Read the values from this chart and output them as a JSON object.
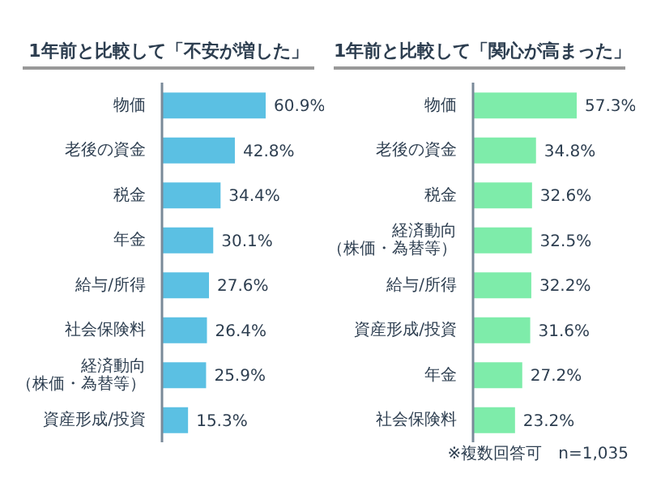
{
  "chart_data": [
    {
      "type": "bar",
      "orientation": "horizontal",
      "title": "1年前と比較して「不安が増した」",
      "tick_labels": "y",
      "legend": false,
      "grid": false,
      "categories": [
        "物価",
        "老後の資金",
        "税金",
        "年金",
        "給与/所得",
        "社会保険料",
        "経済動向（株価・為替等）",
        "資産形成/投資"
      ],
      "values": [
        60.9,
        42.8,
        34.4,
        30.1,
        27.6,
        26.4,
        25.9,
        15.3
      ],
      "color": "#5bc0e3",
      "value_labels": [
        "60.9%",
        "42.8%",
        "34.4%",
        "30.1%",
        "27.6%",
        "26.4%",
        "25.9%",
        "15.3%"
      ]
    },
    {
      "type": "bar",
      "orientation": "horizontal",
      "title": "1年前と比較して「関心が高まった」",
      "tick_labels": "y",
      "legend": false,
      "grid": false,
      "categories": [
        "物価",
        "老後の資金",
        "税金",
        "経済動向（株価・為替等）",
        "給与/所得",
        "資産形成/投資",
        "年金",
        "社会保険料"
      ],
      "values": [
        57.3,
        34.8,
        32.6,
        32.5,
        32.2,
        31.6,
        27.2,
        23.2
      ],
      "color": "#7eecaa",
      "value_labels": [
        "57.3%",
        "34.8%",
        "32.6%",
        "32.5%",
        "32.2%",
        "31.6%",
        "27.2%",
        "23.2%"
      ],
      "annotations": [
        "※複数回答可　n=1,035"
      ]
    }
  ]
}
